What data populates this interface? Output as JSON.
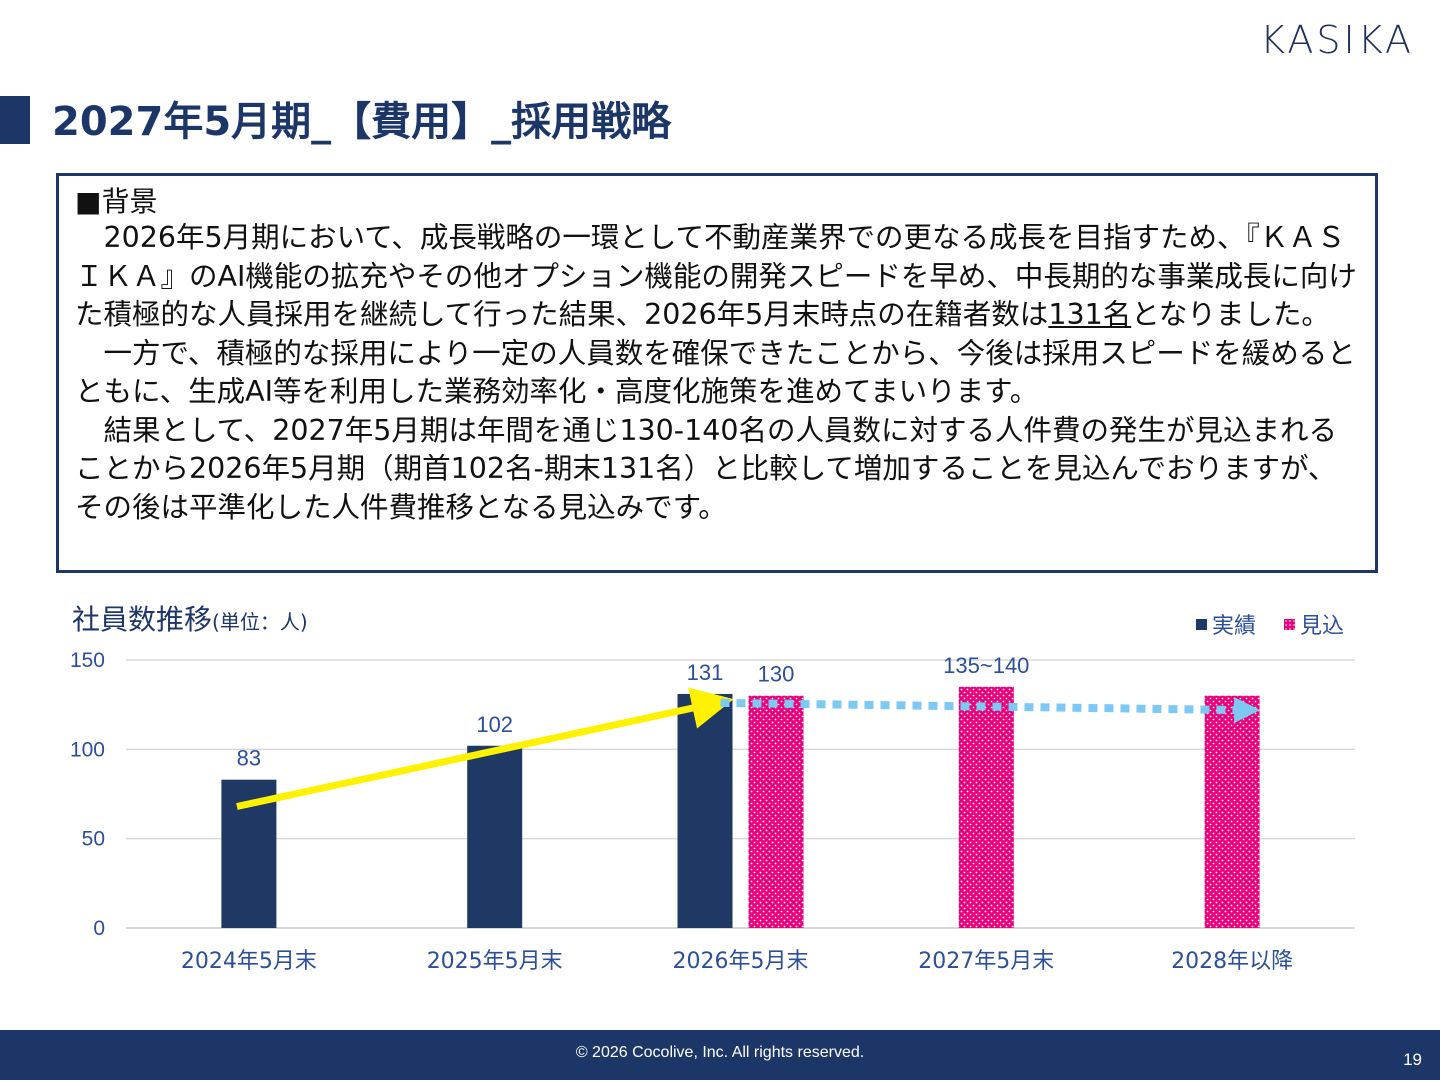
{
  "logo": "KASIKA",
  "title": "2027年5月期_【費用】_採用戦略",
  "background": {
    "heading": "■背景",
    "p1_before": "　2026年5月期において、成長戦略の一環として不動産業界での更なる成長を目指すため、『ＫＡＳＩＫＡ』のAI機能の拡充やその他オプション機能の開発スピードを早め、中長期的な事業成長に向けた積極的な人員採用を継続して行った結果、2026年5月末時点の在籍者数は",
    "p1_emph": "131名",
    "p1_after": "となりました。",
    "p2": "　一方で、積極的な採用により一定の人員数を確保できたことから、今後は採用スピードを緩めるとともに、生成AI等を利用した業務効率化・高度化施策を進めてまいります。",
    "p3": "　結果として、2027年5月期は年間を通じ130-140名の人員数に対する人件費の発生が見込まれることから2026年5月期（期首102名-期末131名）と比較して増加することを見込んでおりますが、その後は平準化した人件費推移となる見込みです。"
  },
  "chart_title": "社員数推移",
  "chart_unit": "(単位：人)",
  "legend": [
    {
      "label": "実績",
      "color": "#1f3864"
    },
    {
      "label": "見込",
      "color": "#e6007e"
    }
  ],
  "chart_data": {
    "type": "bar",
    "categories": [
      "2024年5月末",
      "2025年5月末",
      "2026年5月末",
      "2027年5月末",
      "2028年以降"
    ],
    "series": [
      {
        "name": "実績",
        "values": [
          83,
          102,
          131,
          null,
          null
        ]
      },
      {
        "name": "見込",
        "values": [
          null,
          null,
          130,
          135,
          130
        ]
      }
    ],
    "data_labels": [
      {
        "category": "2024年5月末",
        "series": "実績",
        "text": "83"
      },
      {
        "category": "2025年5月末",
        "series": "実績",
        "text": "102"
      },
      {
        "category": "2026年5月末",
        "series": "実績",
        "text": "131"
      },
      {
        "category": "2026年5月末",
        "series": "見込",
        "text": "130"
      },
      {
        "category": "2027年5月末",
        "series": "見込",
        "text": "135~140"
      }
    ],
    "yticks": [
      0,
      50,
      100,
      150
    ],
    "ylim": [
      0,
      150
    ],
    "grid": true,
    "legend_position": "top-right",
    "annotations": [
      {
        "type": "arrow",
        "color": "#fff200",
        "from": {
          "category": "2024年5月末",
          "y": 68
        },
        "to": {
          "category": "2026年5月末",
          "y": 126
        }
      },
      {
        "type": "dotted-arrow",
        "color": "#7ec8f4",
        "from": {
          "category": "2026年5月末",
          "y": 126
        },
        "to": {
          "category": "2028年以降",
          "y": 122
        }
      }
    ]
  },
  "footer": {
    "copyright": "© 2026 Cocolive, Inc. All rights reserved.",
    "page": "19"
  }
}
